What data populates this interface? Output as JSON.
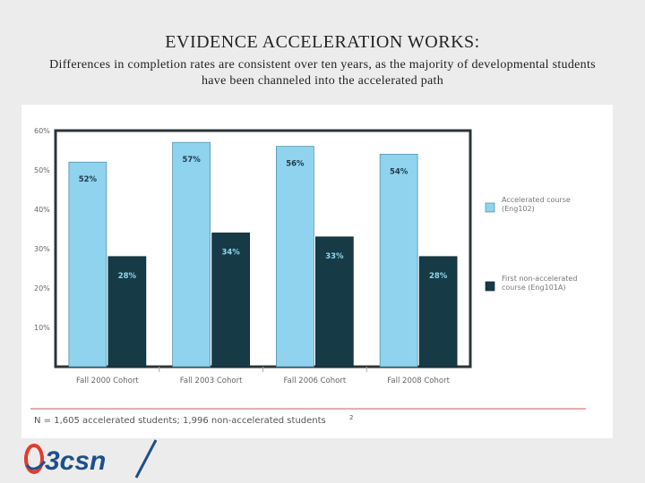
{
  "title": "EVIDENCE ACCELERATION WORKS:",
  "subtitle": "Differences in completion rates are consistent over ten years, as the majority of developmental students have been channeled into the accelerated path",
  "chart_data": {
    "type": "bar",
    "categories": [
      "Fall 2000 Cohort",
      "Fall 2003 Cohort",
      "Fall 2006 Cohort",
      "Fall 2008 Cohort"
    ],
    "series": [
      {
        "name": "Accelerated course (Eng102)",
        "values": [
          52,
          57,
          56,
          54
        ],
        "labels": [
          "52%",
          "57%",
          "56%",
          "54%"
        ],
        "color": "#8fd3ef"
      },
      {
        "name": "First non-accelerated course (Eng101A)",
        "values": [
          28,
          34,
          33,
          28
        ],
        "labels": [
          "28%",
          "34%",
          "33%",
          "28%"
        ],
        "color": "#173a47"
      }
    ],
    "yticks": [
      10,
      20,
      30,
      40,
      50,
      60
    ],
    "ytick_labels": [
      "10%",
      "20%",
      "30%",
      "40%",
      "50%",
      "60%"
    ],
    "ylim": [
      0,
      60
    ],
    "grid": false,
    "legend": [
      {
        "line1": "Accelerated course",
        "line2": "(Eng102)"
      },
      {
        "line1": "First non-accelerated",
        "line2": "course (Eng101A)"
      }
    ],
    "legend_position": "right",
    "footnote": "N = 1,605 accelerated students; 1,996 non-accelerated students",
    "footnote_mark": "2"
  },
  "logo": {
    "text": "3csn",
    "color": "#1d4f8c",
    "accent": "#e23b2e"
  }
}
